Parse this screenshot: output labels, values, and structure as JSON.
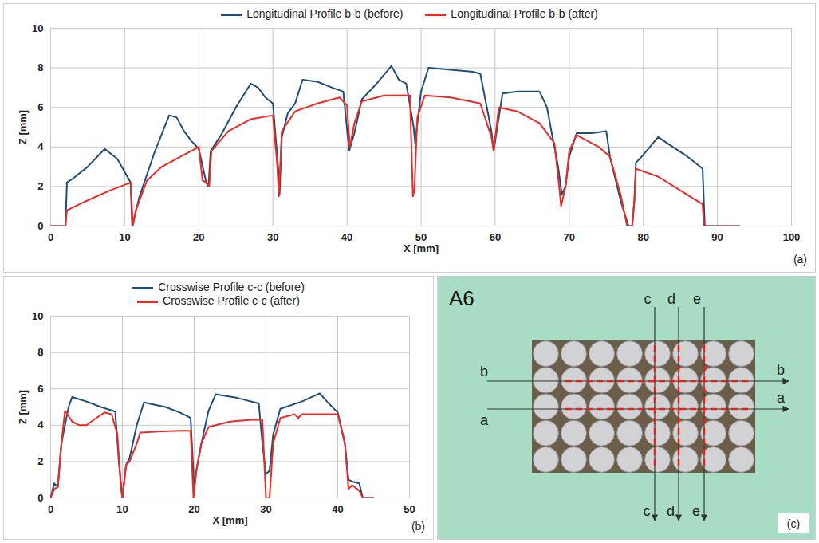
{
  "chart_data": [
    {
      "type": "line",
      "panel_label": "(a)",
      "x_label": "X [mm]",
      "y_label": "Z [mm]",
      "xlim": [
        0,
        100
      ],
      "xticks": [
        0,
        10,
        20,
        30,
        40,
        50,
        60,
        70,
        80,
        90,
        100
      ],
      "ylim": [
        0,
        10
      ],
      "yticks": [
        0,
        2,
        4,
        6,
        8,
        10
      ],
      "grid": true,
      "legend": "top",
      "series": [
        {
          "name": "Longitudinal Profile b-b (before)",
          "color": "#1f4e79",
          "x": [
            0,
            2,
            2.2,
            3,
            5,
            7.3,
            9,
            10.8,
            11,
            11.2,
            12,
            14,
            16,
            17,
            18,
            19,
            20,
            21,
            21.3,
            21.6,
            23,
            25,
            27,
            28,
            29,
            30,
            30.7,
            30.9,
            31.2,
            32,
            33,
            34,
            36,
            38,
            39.5,
            40.3,
            41,
            42,
            44,
            46,
            47,
            48,
            49,
            49.2,
            50,
            51,
            54,
            57,
            58,
            59.5,
            59.8,
            60.5,
            61,
            63,
            66,
            67,
            68.5,
            69,
            69.5,
            70,
            71,
            73,
            75,
            75.5,
            77,
            78,
            78.5,
            78.8,
            79,
            80,
            82,
            84,
            86,
            88,
            88.3,
            93
          ],
          "values": [
            0,
            0,
            2.2,
            2.4,
            3.0,
            3.9,
            3.4,
            2.2,
            0,
            0.3,
            1.5,
            3.7,
            5.6,
            5.5,
            4.8,
            4.3,
            3.9,
            2.2,
            2.0,
            3.8,
            4.6,
            6.0,
            7.2,
            7.0,
            6.5,
            6.2,
            3.0,
            1.6,
            4.5,
            5.7,
            6.2,
            7.4,
            7.3,
            7.0,
            6.8,
            3.8,
            4.7,
            6.4,
            7.2,
            8.1,
            7.4,
            7.2,
            5.0,
            4.2,
            6.8,
            8.0,
            7.9,
            7.8,
            7.7,
            4.8,
            3.8,
            5.5,
            6.7,
            6.8,
            6.8,
            6.0,
            3.0,
            1.6,
            2.0,
            3.5,
            4.7,
            4.7,
            4.8,
            3.5,
            1.2,
            0,
            0,
            1.3,
            3.2,
            3.6,
            4.5,
            4.0,
            3.5,
            2.9,
            0,
            0
          ]
        },
        {
          "name": "Longitudinal Profile b-b (after)",
          "color": "#ee2a24",
          "x": [
            0,
            2,
            2.2,
            5,
            8,
            10.8,
            11.1,
            11.5,
            13,
            15,
            18,
            20,
            20.5,
            21,
            21.4,
            21.7,
            24,
            27,
            30,
            30.6,
            30.8,
            31.2,
            33,
            36,
            39,
            40,
            40.4,
            41,
            42,
            45,
            48.5,
            48.9,
            49.1,
            49.5,
            50.5,
            54,
            58,
            59.5,
            59.8,
            60.5,
            63,
            66,
            68,
            68.7,
            68.9,
            69.5,
            70,
            71,
            74,
            75.5,
            77,
            77.8,
            78.5,
            78.8,
            79,
            82,
            85,
            88,
            88.2,
            93
          ],
          "values": [
            0,
            0,
            0.8,
            1.3,
            1.8,
            2.2,
            0,
            0.8,
            2.3,
            3.0,
            3.6,
            4.0,
            2.3,
            2.2,
            2.0,
            3.8,
            4.8,
            5.4,
            5.6,
            3.0,
            1.5,
            4.8,
            5.8,
            6.2,
            6.5,
            6.1,
            4.0,
            5.2,
            6.3,
            6.6,
            6.6,
            1.5,
            1.8,
            5.5,
            6.6,
            6.5,
            6.2,
            4.5,
            3.8,
            6.0,
            5.8,
            5.2,
            4.2,
            1.8,
            1.0,
            2.0,
            3.8,
            4.6,
            4.0,
            3.5,
            1.5,
            0,
            0,
            1.4,
            2.9,
            2.5,
            1.8,
            1.1,
            0,
            0
          ]
        }
      ]
    },
    {
      "type": "line",
      "panel_label": "(b)",
      "x_label": "X [mm]",
      "y_label": "Z [mm]",
      "xlim": [
        0,
        50
      ],
      "xticks": [
        0,
        10,
        20,
        30,
        40,
        50
      ],
      "ylim": [
        0,
        10
      ],
      "yticks": [
        0,
        2,
        4,
        6,
        8,
        10
      ],
      "grid": true,
      "legend": "top",
      "series": [
        {
          "name": "Crosswise Profile c-c (before)",
          "color": "#1f4e79",
          "x": [
            0,
            0.5,
            1,
            1.5,
            2.5,
            3,
            5,
            7,
            9,
            9.5,
            10,
            10.5,
            11,
            12,
            13,
            16,
            18,
            19.5,
            20,
            20.3,
            21,
            22,
            23,
            26,
            29,
            29.5,
            30,
            30.5,
            31,
            32,
            35,
            37.5,
            38.5,
            40,
            41,
            41.5,
            42,
            43,
            43.5,
            45
          ],
          "values": [
            0,
            0.8,
            0.6,
            3.0,
            5.0,
            5.55,
            5.3,
            5.0,
            4.75,
            2.0,
            0,
            1.8,
            2.2,
            4.0,
            5.25,
            5.0,
            4.7,
            4.4,
            0.5,
            1.5,
            3.0,
            4.8,
            5.7,
            5.5,
            5.2,
            3.0,
            1.3,
            1.5,
            3.5,
            4.9,
            5.3,
            5.75,
            5.3,
            4.7,
            3.0,
            1.0,
            0.9,
            0.8,
            0,
            0
          ]
        },
        {
          "name": "Crosswise Profile c-c (after)",
          "color": "#ee2a24",
          "x": [
            0,
            0.5,
            1,
            1.5,
            2,
            3,
            4,
            5,
            6,
            7.5,
            8.5,
            9.3,
            9.8,
            10,
            10.5,
            11,
            12,
            12.5,
            15,
            18,
            19.5,
            19.9,
            20.3,
            21,
            22,
            25,
            28,
            29.5,
            30,
            30.5,
            31,
            32,
            34,
            34.5,
            35,
            38,
            40,
            41,
            41.5,
            42,
            43,
            43.5,
            45
          ],
          "values": [
            0,
            0.5,
            0.6,
            3.0,
            4.8,
            4.2,
            4.0,
            4.0,
            4.3,
            4.7,
            4.6,
            3.5,
            0.5,
            0,
            1.8,
            2.0,
            3.0,
            3.6,
            3.65,
            3.7,
            3.7,
            0,
            1.5,
            3.0,
            3.9,
            4.2,
            4.3,
            4.3,
            0,
            0,
            3.0,
            4.4,
            4.6,
            4.4,
            4.6,
            4.6,
            4.6,
            3.0,
            0.5,
            0.7,
            0.4,
            0,
            0
          ]
        }
      ]
    }
  ],
  "photo": {
    "panel_label": "(c)",
    "specimen": "A6",
    "horizontal_sections": [
      "b",
      "a"
    ],
    "vertical_sections": [
      "c",
      "d",
      "e"
    ]
  }
}
